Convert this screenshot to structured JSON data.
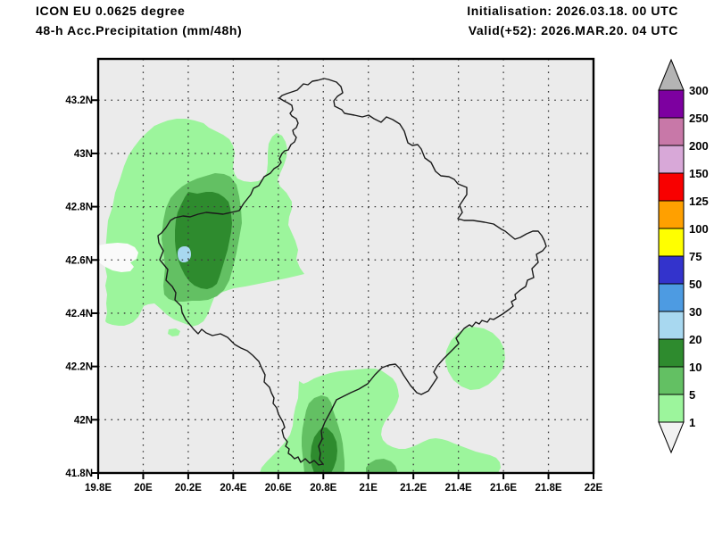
{
  "header": {
    "model": "ICON EU 0.0625 degree",
    "product": "48-h Acc.Precipitation (mm/48h)",
    "init_label": "Initialisation: 2026.03.18. 00 UTC",
    "valid_label": "Valid(+52): 2026.MAR.20. 04 UTC"
  },
  "axes": {
    "lon_ticks": [
      {
        "value": 19.8,
        "label": "19.8E"
      },
      {
        "value": 20.0,
        "label": "20E"
      },
      {
        "value": 20.2,
        "label": "20.2E"
      },
      {
        "value": 20.4,
        "label": "20.4E"
      },
      {
        "value": 20.6,
        "label": "20.6E"
      },
      {
        "value": 20.8,
        "label": "20.8E"
      },
      {
        "value": 21.0,
        "label": "21E"
      },
      {
        "value": 21.2,
        "label": "21.2E"
      },
      {
        "value": 21.4,
        "label": "21.4E"
      },
      {
        "value": 21.6,
        "label": "21.6E"
      },
      {
        "value": 21.8,
        "label": "21.8E"
      },
      {
        "value": 22.0,
        "label": "22E"
      }
    ],
    "lat_ticks": [
      {
        "value": 41.8,
        "label": "41.8N"
      },
      {
        "value": 42.0,
        "label": "42N"
      },
      {
        "value": 42.2,
        "label": "42.2N"
      },
      {
        "value": 42.4,
        "label": "42.4N"
      },
      {
        "value": 42.6,
        "label": "42.6N"
      },
      {
        "value": 42.8,
        "label": "42.8N"
      },
      {
        "value": 43.0,
        "label": "43N"
      },
      {
        "value": 43.2,
        "label": "43.2N"
      }
    ]
  },
  "colorbar": {
    "boundary_labels": [
      "300",
      "250",
      "200",
      "150",
      "125",
      "100",
      "75",
      "50",
      "30",
      "20",
      "10",
      "5",
      "1"
    ],
    "band_colors_top_to_bottom": [
      "#7d00a0",
      "#c878a8",
      "#d8a8d8",
      "#f80000",
      "#ffa000",
      "#ffff00",
      "#3333cc",
      "#4d9be2",
      "#a8d8f0",
      "#2e8b2e",
      "#63c063",
      "#9cf59c"
    ],
    "over_color": "#b4b4b4",
    "under_color": "#f2f2f2"
  },
  "map": {
    "background_color": "#ebebeb",
    "outline_region": "Kosovo",
    "fill_colors": {
      "1-5": "#9cf59c",
      "5-10": "#63c063",
      "10-20": "#2e8b2e",
      "20-30": "#a8d8f0",
      "below-1": "#fafafa"
    }
  },
  "chart_data": {
    "type": "heatmap",
    "subtype": "filled-contour precipitation forecast map",
    "title": "48-h Acc.Precipitation (mm/48h)",
    "model": "ICON EU 0.0625 degree",
    "initialisation": "2026.03.18. 00 UTC",
    "valid": "Valid(+52): 2026.MAR.20. 04 UTC",
    "units": "mm/48h",
    "lon_range": [
      19.8,
      22.0
    ],
    "lat_range": [
      41.8,
      43.36
    ],
    "grid": "dotted gridlines every 0.2 degree",
    "region_outline": "Kosovo national border",
    "levels_mm": [
      1,
      5,
      10,
      20,
      30,
      50,
      75,
      100,
      125,
      150,
      200,
      250,
      300
    ],
    "legend_position": "right vertical colorbar with over/under arrow triangles",
    "features": [
      {
        "name": "northwest precipitation maximum",
        "center_lon": 20.16,
        "center_lat": 42.62,
        "max_band_mm": "20-30",
        "note": "broad 1-5 mm shield with nested 5-10 and 10-20 mm cores and a small 20-30 mm spot near 20.15E 42.62N"
      },
      {
        "name": "southern precipitation area",
        "center_lon": 20.8,
        "center_lat": 41.95,
        "max_band_mm": "10-20",
        "note": "band along southern border reaching the bottom map edge, small 10-20 mm core near 20.8E 41.85N"
      },
      {
        "name": "southeast light patch",
        "center_lon": 21.47,
        "center_lat": 42.33,
        "max_band_mm": "1-5",
        "note": "isolated round 1-5 mm patch on the southeastern border"
      },
      {
        "name": "dry remainder",
        "max_band_mm": "<1",
        "note": "rest of domain below 1 mm (gray background)"
      }
    ]
  }
}
